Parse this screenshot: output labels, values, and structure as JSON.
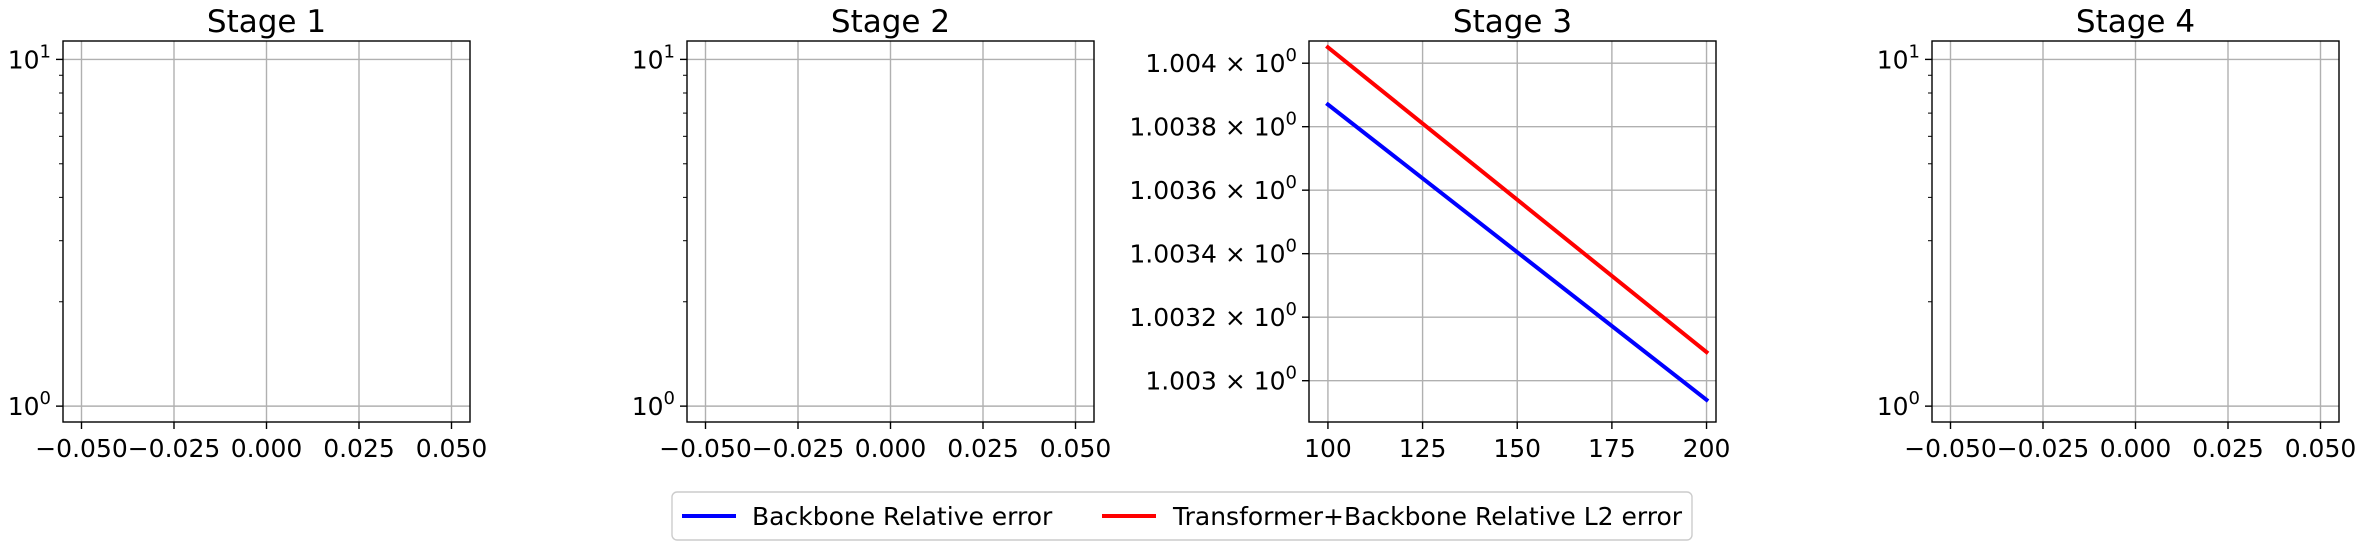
{
  "chart_data": [
    {
      "type": "line",
      "title": "Stage 1",
      "xlabel": "",
      "ylabel": "",
      "yscale": "log",
      "xticks": [
        "−0.050",
        "−0.025",
        "0.000",
        "0.025",
        "0.050"
      ],
      "xtick_values": [
        -0.05,
        -0.025,
        0.0,
        0.025,
        0.05
      ],
      "xlim": [
        -0.055,
        0.055
      ],
      "yticks": [
        {
          "base": "10",
          "exp": "0"
        },
        {
          "base": "10",
          "exp": "1"
        }
      ],
      "ytick_values": [
        1,
        10
      ],
      "ylim": [
        0.9,
        11.3
      ],
      "grid": true,
      "series": []
    },
    {
      "type": "line",
      "title": "Stage 2",
      "xlabel": "",
      "ylabel": "",
      "yscale": "log",
      "xticks": [
        "−0.050",
        "−0.025",
        "0.000",
        "0.025",
        "0.050"
      ],
      "xtick_values": [
        -0.05,
        -0.025,
        0.0,
        0.025,
        0.05
      ],
      "xlim": [
        -0.055,
        0.055
      ],
      "yticks": [
        {
          "base": "10",
          "exp": "0"
        },
        {
          "base": "10",
          "exp": "1"
        }
      ],
      "ytick_values": [
        1,
        10
      ],
      "ylim": [
        0.9,
        11.3
      ],
      "grid": true,
      "series": []
    },
    {
      "type": "line",
      "title": "Stage 3",
      "xlabel": "",
      "ylabel": "",
      "yscale": "log",
      "xticks": [
        "100",
        "125",
        "150",
        "175",
        "200"
      ],
      "xtick_values": [
        100,
        125,
        150,
        175,
        200
      ],
      "xlim": [
        95,
        202.5
      ],
      "yticks": [
        {
          "base": "1.003 × 10",
          "exp": "0"
        },
        {
          "base": "1.0032 × 10",
          "exp": "0"
        },
        {
          "base": "1.0034 × 10",
          "exp": "0"
        },
        {
          "base": "1.0036 × 10",
          "exp": "0"
        },
        {
          "base": "1.0038 × 10",
          "exp": "0"
        },
        {
          "base": "1.004 × 10",
          "exp": "0"
        }
      ],
      "ytick_values": [
        1.003,
        1.0032,
        1.0034,
        1.0036,
        1.0038,
        1.004
      ],
      "ylim": [
        1.00287,
        1.00407
      ],
      "grid": true,
      "series": [
        {
          "name": "Backbone Relative error",
          "color": "#0000ff",
          "x": [
            100,
            200
          ],
          "y": [
            1.00387,
            1.00294
          ]
        },
        {
          "name": "Transformer+Backbone Relative L2 error",
          "color": "#ff0000",
          "x": [
            100,
            200
          ],
          "y": [
            1.00405,
            1.00309
          ]
        }
      ]
    },
    {
      "type": "line",
      "title": "Stage 4",
      "xlabel": "",
      "ylabel": "",
      "yscale": "log",
      "xticks": [
        "−0.050",
        "−0.025",
        "0.000",
        "0.025",
        "0.050"
      ],
      "xtick_values": [
        -0.05,
        -0.025,
        0.0,
        0.025,
        0.05
      ],
      "xlim": [
        -0.055,
        0.055
      ],
      "yticks": [
        {
          "base": "10",
          "exp": "0"
        },
        {
          "base": "10",
          "exp": "1"
        }
      ],
      "ytick_values": [
        1,
        10
      ],
      "ylim": [
        0.9,
        11.3
      ],
      "grid": true,
      "series": []
    }
  ],
  "legend": {
    "placement": "bottom-center",
    "items": [
      {
        "label": "Backbone Relative error",
        "color": "#0000ff"
      },
      {
        "label": "Transformer+Backbone Relative L2 error",
        "color": "#ff0000"
      }
    ]
  }
}
